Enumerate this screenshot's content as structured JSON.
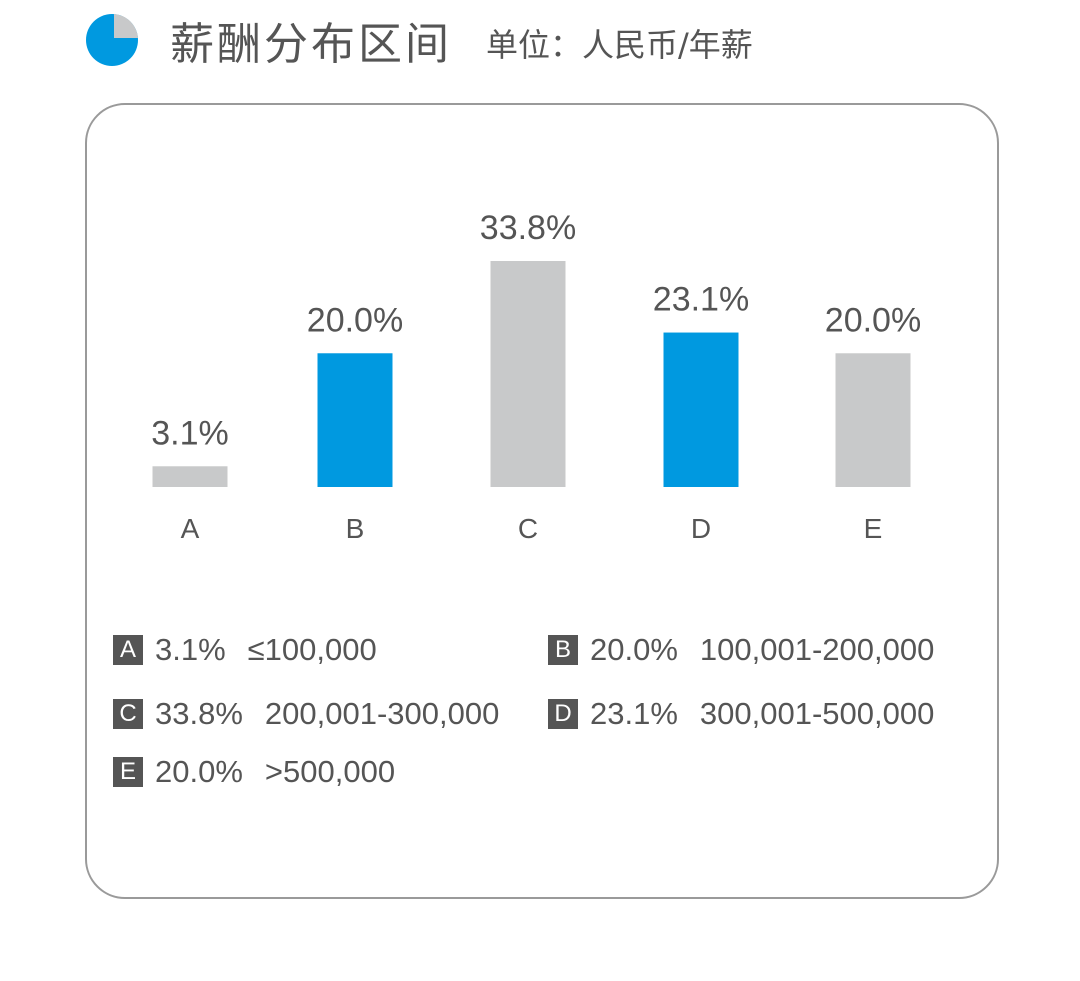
{
  "header": {
    "title": "薪酬分布区间",
    "subtitle": "单位：人民币/年薪"
  },
  "colors": {
    "accent": "#0099e0",
    "gray_bar": "#c8c9ca",
    "text": "#555555",
    "badge": "#555555"
  },
  "chart_data": {
    "type": "bar",
    "categories": [
      "A",
      "B",
      "C",
      "D",
      "E"
    ],
    "values": [
      3.1,
      20.0,
      33.8,
      23.1,
      20.0
    ],
    "labels": [
      "3.1%",
      "20.0%",
      "33.8%",
      "23.1%",
      "20.0%"
    ],
    "highlight": [
      false,
      true,
      false,
      true,
      false
    ],
    "ylim": [
      0,
      33.8
    ],
    "grid": false
  },
  "legend": [
    {
      "badge": "A",
      "pct": "3.1%",
      "range": "≤100,000"
    },
    {
      "badge": "B",
      "pct": "20.0%",
      "range": "100,001-200,000"
    },
    {
      "badge": "C",
      "pct": "33.8%",
      "range": "200,001-300,000"
    },
    {
      "badge": "D",
      "pct": "23.1%",
      "range": "300,001-500,000"
    },
    {
      "badge": "E",
      "pct": "20.0%",
      "range": ">500,000"
    }
  ]
}
